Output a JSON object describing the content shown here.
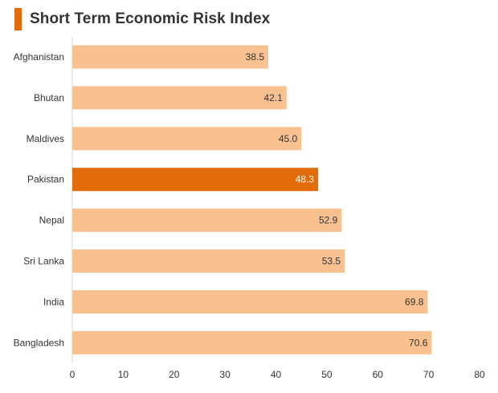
{
  "chart_data": {
    "type": "bar",
    "orientation": "horizontal",
    "title": "Short Term Economic Risk Index",
    "categories": [
      "Afghanistan",
      "Bhutan",
      "Maldives",
      "Pakistan",
      "Nepal",
      "Sri Lanka",
      "India",
      "Bangladesh"
    ],
    "values": [
      38.5,
      42.1,
      45.0,
      48.3,
      52.9,
      53.5,
      69.8,
      70.6
    ],
    "value_labels": [
      "38.5",
      "42.1",
      "45.0",
      "48.3",
      "52.9",
      "53.5",
      "69.8",
      "70.6"
    ],
    "highlight_category": "Pakistan",
    "xlim": [
      0,
      80
    ],
    "xticks": [
      "0",
      "10",
      "20",
      "30",
      "40",
      "50",
      "60",
      "70",
      "80"
    ],
    "xlabel": "",
    "ylabel": "",
    "grid": false,
    "legend": "none",
    "colors": {
      "bar": "#f9c090",
      "highlight": "#e36c0a",
      "title_accent": "#e36c0a",
      "text": "#333333",
      "highlight_text": "#ffffff",
      "axis": "#d9d9d9"
    }
  }
}
